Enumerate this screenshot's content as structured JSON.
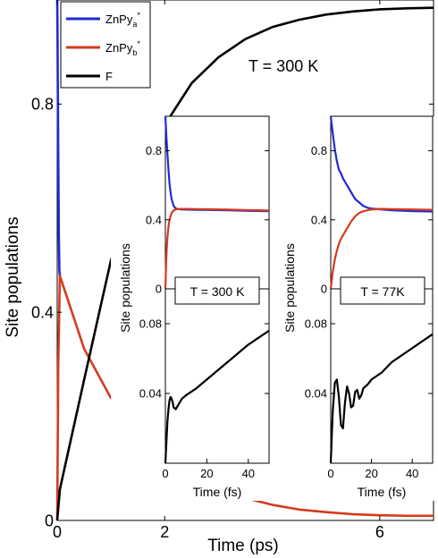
{
  "chart_data": [
    {
      "id": "main",
      "type": "line",
      "xlabel": "Time (ps)",
      "ylabel": "Site populations",
      "xlim": [
        0,
        7
      ],
      "ylim": [
        0,
        1
      ],
      "xticks": [
        0,
        2,
        6
      ],
      "xtick_labels": [
        "0",
        "2",
        "6"
      ],
      "yticks": [
        0,
        0.4,
        0.8
      ],
      "ytick_labels": [
        "0",
        "0.4",
        "0.8"
      ],
      "annotation": "T = 300 K",
      "legend": {
        "placement": "top-left",
        "entries": [
          {
            "base": "ZnPy",
            "sub": "a",
            "sup": "*"
          },
          {
            "base": "ZnPy",
            "sub": "b",
            "sup": "*"
          },
          {
            "base": "F",
            "sub": "",
            "sup": ""
          }
        ]
      },
      "series": [
        {
          "name": "ZnPya*",
          "color": "#1f2bd6",
          "x": [
            0,
            0.005,
            0.01,
            0.02,
            0.03,
            0.04,
            0.05
          ],
          "y": [
            1.0,
            0.95,
            0.85,
            0.7,
            0.55,
            0.48,
            0.47
          ]
        },
        {
          "name": "ZnPyb*",
          "color": "#d63a1c",
          "x": [
            0,
            0.02,
            0.05,
            0.5,
            1,
            1.5,
            2,
            2.5,
            3,
            3.5,
            4,
            4.5,
            5,
            5.5,
            6,
            6.5,
            7
          ],
          "y": [
            0,
            0.3,
            0.47,
            0.33,
            0.235,
            0.17,
            0.12,
            0.085,
            0.06,
            0.043,
            0.03,
            0.021,
            0.016,
            0.012,
            0.01,
            0.009,
            0.009
          ]
        },
        {
          "name": "F",
          "color": "#000000",
          "x": [
            0,
            0.05,
            0.5,
            1,
            1.5,
            2,
            2.5,
            3,
            3.5,
            4,
            4.5,
            5,
            5.5,
            6,
            6.5,
            7
          ],
          "y": [
            0,
            0.06,
            0.27,
            0.5,
            0.65,
            0.76,
            0.84,
            0.89,
            0.925,
            0.948,
            0.962,
            0.972,
            0.978,
            0.982,
            0.984,
            0.985
          ]
        }
      ]
    },
    {
      "id": "inset-300k",
      "type": "line",
      "xlabel": "Time (fs)",
      "ylabel": "Site populations",
      "annotation": "T = 300 K",
      "xlim": [
        0,
        50
      ],
      "xticks": [
        0,
        20,
        40
      ],
      "xtick_labels": [
        "0",
        "20",
        "40"
      ],
      "upper": {
        "ylim": [
          0,
          1
        ],
        "yticks": [
          0,
          0.4,
          0.8
        ],
        "ytick_labels": [
          "0",
          "0.4",
          "0.8"
        ],
        "series": [
          {
            "name": "ZnPya*",
            "color": "#1f2bd6",
            "x": [
              0,
              0.5,
              1,
              1.5,
              2,
              2.5,
              3,
              4,
              5,
              6,
              8,
              10,
              15,
              20,
              30,
              40,
              50
            ],
            "y": [
              1.0,
              0.88,
              0.78,
              0.69,
              0.61,
              0.56,
              0.52,
              0.48,
              0.466,
              0.462,
              0.46,
              0.459,
              0.458,
              0.457,
              0.455,
              0.452,
              0.45
            ]
          },
          {
            "name": "ZnPyb*",
            "color": "#d63a1c",
            "x": [
              0,
              0.3,
              0.6,
              1,
              1.5,
              2,
              3,
              4,
              5,
              6,
              8,
              10,
              15,
              20,
              30,
              40,
              50
            ],
            "y": [
              0,
              0.12,
              0.22,
              0.3,
              0.36,
              0.4,
              0.44,
              0.455,
              0.46,
              0.462,
              0.463,
              0.463,
              0.462,
              0.461,
              0.459,
              0.456,
              0.454
            ]
          }
        ]
      },
      "lower": {
        "ylim": [
          0,
          0.1
        ],
        "yticks": [
          0.04,
          0.08
        ],
        "ytick_labels": [
          "0.04",
          "0.08"
        ],
        "series": [
          {
            "name": "F",
            "color": "#000000",
            "x": [
              0,
              0.5,
              1,
              1.5,
              2,
              2.5,
              3,
              3.5,
              4,
              5,
              6,
              7,
              8,
              10,
              15,
              20,
              25,
              30,
              35,
              40,
              45,
              50
            ],
            "y": [
              0,
              0.012,
              0.024,
              0.031,
              0.036,
              0.038,
              0.037,
              0.035,
              0.032,
              0.031,
              0.033,
              0.035,
              0.037,
              0.039,
              0.043,
              0.048,
              0.053,
              0.058,
              0.063,
              0.068,
              0.072,
              0.076
            ]
          }
        ]
      }
    },
    {
      "id": "inset-77k",
      "type": "line",
      "xlabel": "Time (fs)",
      "ylabel": "Site populations",
      "annotation": "T = 77K",
      "xlim": [
        0,
        50
      ],
      "xticks": [
        0,
        20,
        40
      ],
      "xtick_labels": [
        "0",
        "20",
        "40"
      ],
      "upper": {
        "ylim": [
          0,
          1
        ],
        "yticks": [
          0,
          0.4,
          0.8
        ],
        "ytick_labels": [
          "0",
          "0.4",
          "0.8"
        ],
        "series": [
          {
            "name": "ZnPya*",
            "color": "#1f2bd6",
            "x": [
              0,
              1,
              2,
              3,
              4,
              5,
              6,
              8,
              10,
              12,
              14,
              16,
              18,
              20,
              25,
              30,
              40,
              50
            ],
            "y": [
              1.0,
              0.9,
              0.81,
              0.74,
              0.69,
              0.67,
              0.64,
              0.6,
              0.56,
              0.52,
              0.5,
              0.48,
              0.47,
              0.465,
              0.46,
              0.455,
              0.45,
              0.448
            ]
          },
          {
            "name": "ZnPyb*",
            "color": "#d63a1c",
            "x": [
              0,
              1,
              2,
              3,
              4,
              5,
              6,
              8,
              10,
              12,
              14,
              16,
              18,
              20,
              25,
              30,
              40,
              50
            ],
            "y": [
              0,
              0.1,
              0.17,
              0.22,
              0.26,
              0.29,
              0.31,
              0.35,
              0.39,
              0.42,
              0.44,
              0.45,
              0.455,
              0.46,
              0.463,
              0.462,
              0.46,
              0.458
            ]
          }
        ]
      },
      "lower": {
        "ylim": [
          0,
          0.1
        ],
        "yticks": [
          0.04,
          0.08
        ],
        "ytick_labels": [
          "0.04",
          "0.08"
        ],
        "series": [
          {
            "name": "F",
            "color": "#000000",
            "x": [
              0,
              1,
              2,
              3,
              4,
              5,
              6,
              7,
              8,
              9,
              10,
              11,
              12,
              13,
              14,
              15,
              16,
              18,
              20,
              25,
              30,
              40,
              50
            ],
            "y": [
              0,
              0.03,
              0.046,
              0.048,
              0.038,
              0.022,
              0.02,
              0.035,
              0.044,
              0.04,
              0.032,
              0.033,
              0.041,
              0.042,
              0.037,
              0.039,
              0.043,
              0.045,
              0.048,
              0.052,
              0.058,
              0.066,
              0.074
            ]
          }
        ]
      }
    }
  ]
}
